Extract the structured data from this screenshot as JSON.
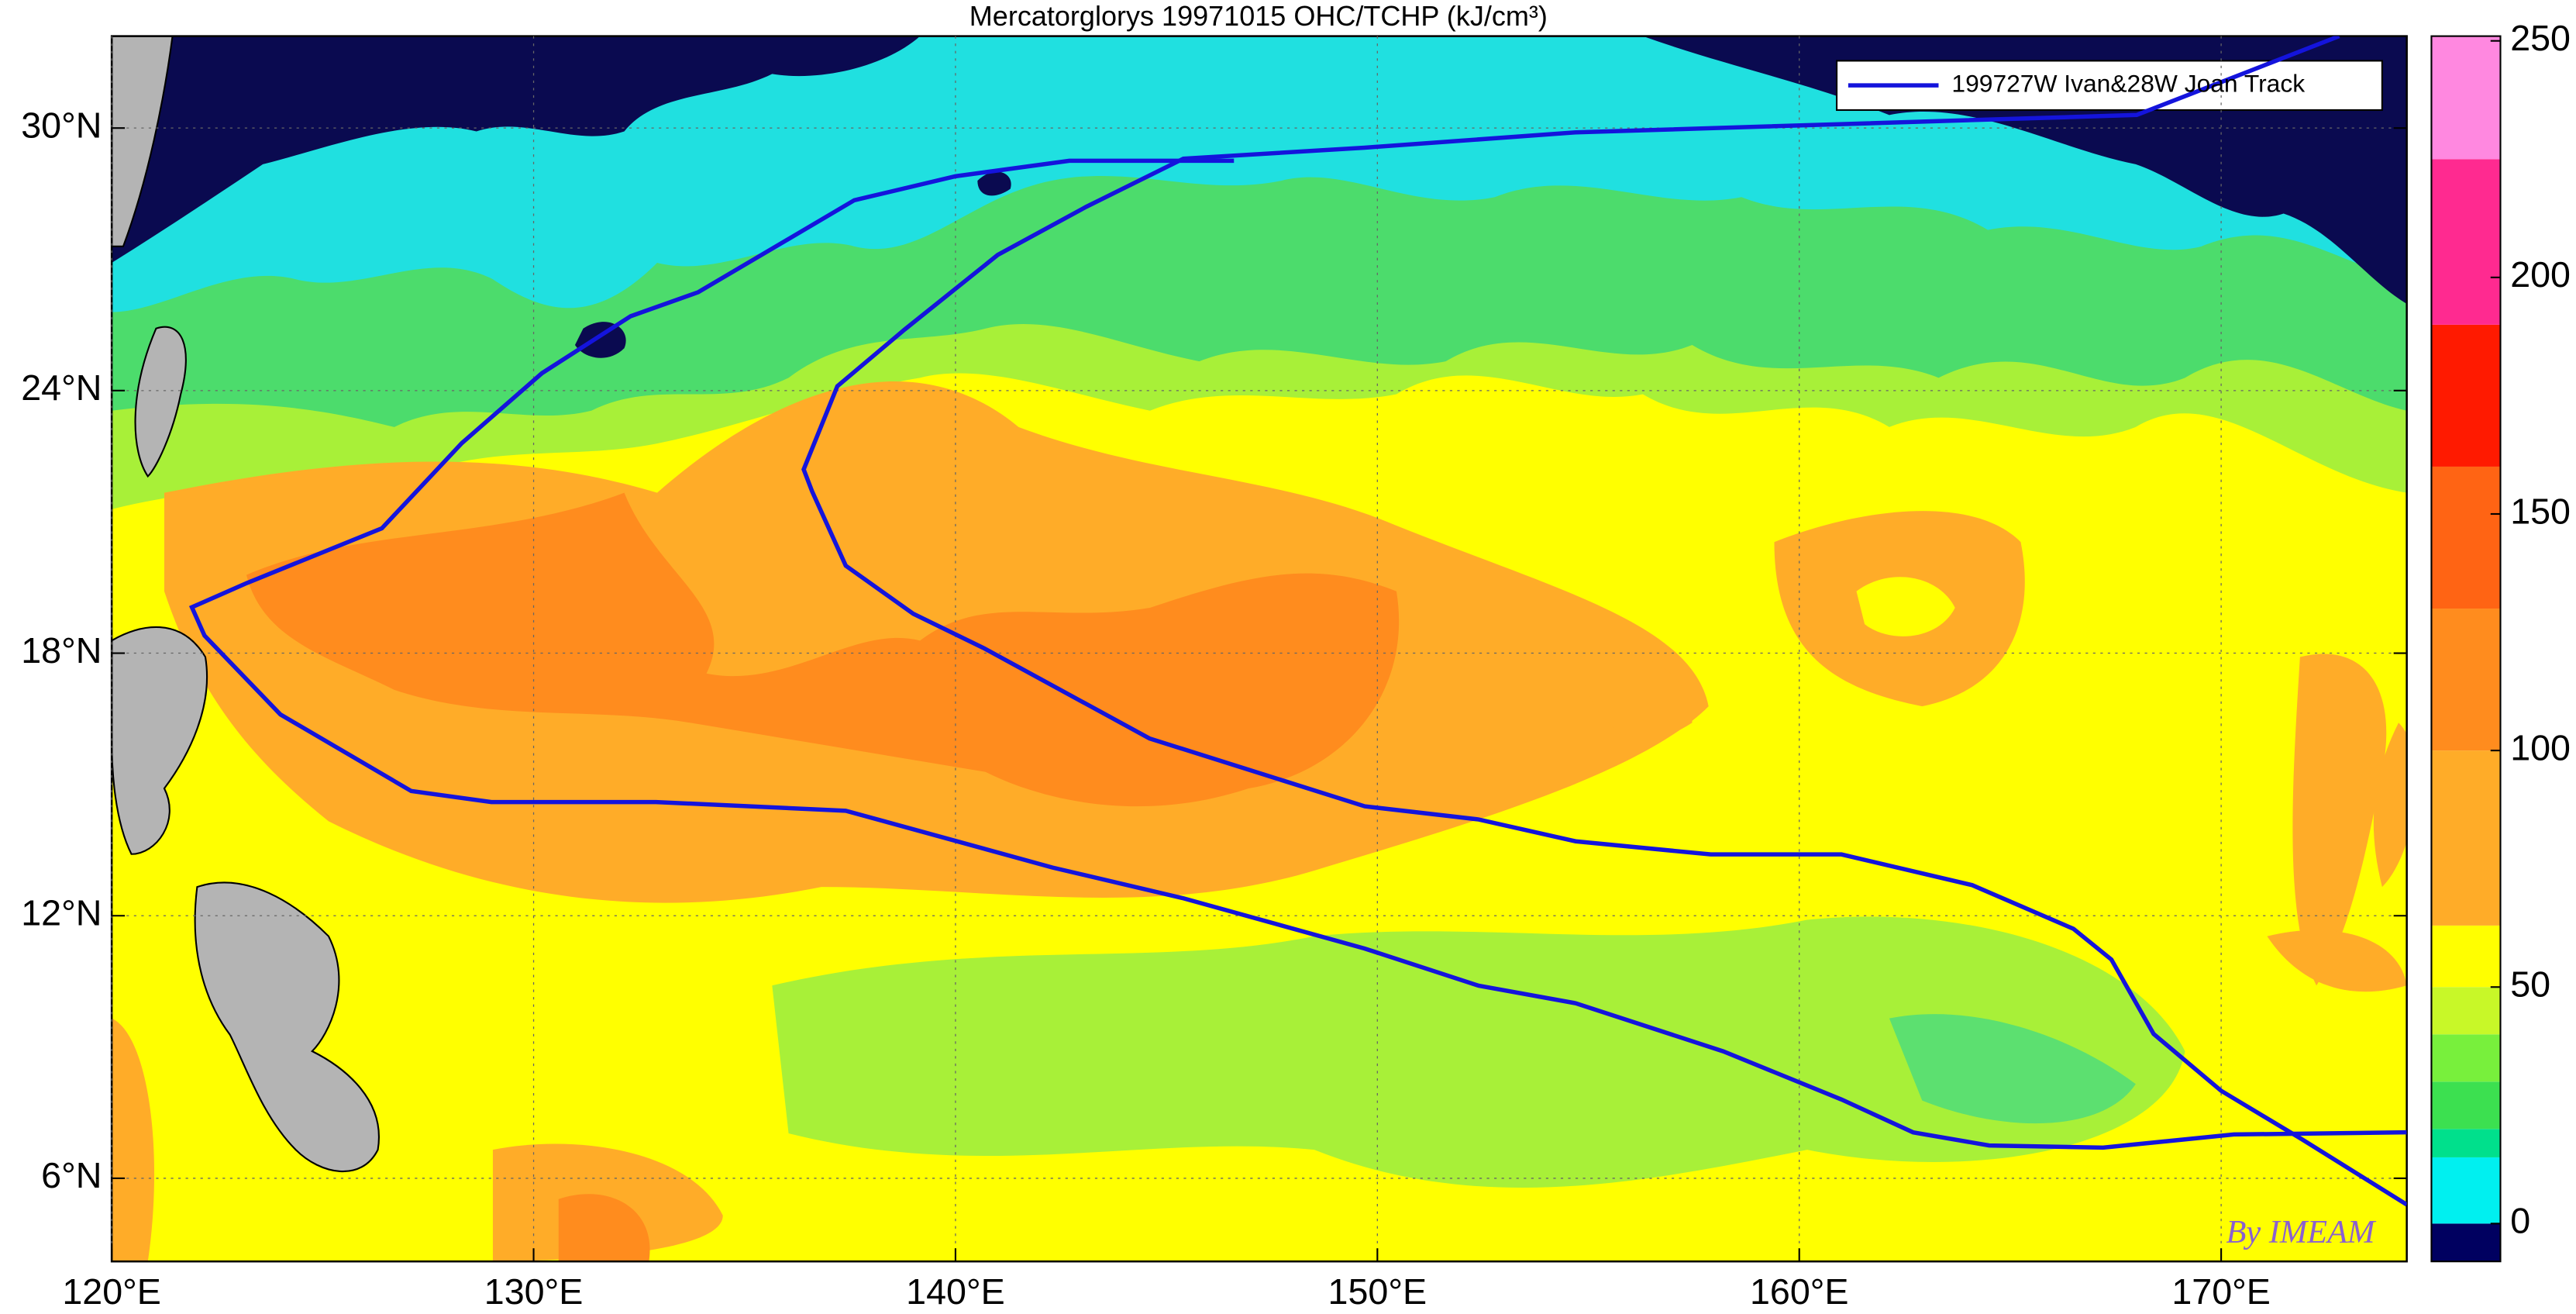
{
  "chart_data": {
    "type": "map",
    "title": "Mercatorglorys 19971015 OHC/TCHP (kJ/cm³)",
    "xlim": [
      120,
      174.4
    ],
    "ylim": [
      4.1,
      32.1
    ],
    "xticks": [
      {
        "value": 120,
        "label": "120°E"
      },
      {
        "value": 130,
        "label": "130°E"
      },
      {
        "value": 140,
        "label": "140°E"
      },
      {
        "value": 150,
        "label": "150°E"
      },
      {
        "value": 160,
        "label": "160°E"
      },
      {
        "value": 170,
        "label": "170°E"
      }
    ],
    "yticks": [
      {
        "value": 6,
        "label": "6°N"
      },
      {
        "value": 12,
        "label": "12°N"
      },
      {
        "value": 18,
        "label": "18°N"
      },
      {
        "value": 24,
        "label": "24°N"
      },
      {
        "value": 30,
        "label": "30°N"
      }
    ],
    "grid": true,
    "legend": "199727W Ivan&28W Joan Track",
    "legend_position": "upper right",
    "track_color": "#1414dc",
    "tracks": [
      {
        "lon": [
          172.8,
          168.0,
          154.7,
          149.7,
          145.4,
          143.1,
          141.0,
          138.8,
          137.2,
          136.4,
          136.6,
          137.4,
          139.0,
          140.7,
          144.6,
          149.7,
          152.4,
          154.7,
          157.9,
          161.0,
          164.1,
          166.5,
          167.4,
          168.4,
          170.0,
          171.9,
          174.4
        ],
        "lat": [
          32.1,
          30.3,
          29.9,
          29.55,
          29.3,
          28.2,
          27.1,
          25.4,
          24.1,
          22.2,
          21.7,
          20.0,
          18.9,
          18.1,
          16.05,
          14.5,
          14.2,
          13.7,
          13.4,
          13.4,
          12.7,
          11.7,
          11.0,
          9.3,
          8.0,
          6.9,
          5.4
        ]
      },
      {
        "lon": [
          146.6,
          142.7,
          140.0,
          137.6,
          133.9,
          132.3,
          130.2,
          128.3,
          126.4,
          123.2,
          121.9,
          122.2,
          124.0,
          127.1,
          129.0,
          131.8,
          132.9,
          137.4,
          142.3,
          145.4,
          149.7,
          152.4,
          154.7,
          158.2,
          161.0,
          162.7,
          164.5,
          167.2,
          170.3,
          174.4
        ],
        "lat": [
          29.25,
          29.25,
          28.9,
          28.35,
          26.25,
          25.7,
          24.4,
          22.8,
          20.85,
          19.6,
          19.05,
          18.4,
          16.6,
          14.85,
          14.6,
          14.6,
          14.6,
          14.4,
          13.1,
          12.4,
          11.25,
          10.4,
          10.0,
          8.9,
          7.8,
          7.05,
          6.75,
          6.7,
          7.0,
          7.05
        ]
      }
    ],
    "clim": [
      -8,
      251
    ],
    "cticks": [
      0,
      50,
      100,
      150,
      200,
      250
    ],
    "colorbar": [
      {
        "from": -8,
        "to": 0,
        "color": "#000060"
      },
      {
        "from": 0,
        "to": 14,
        "color": "#00f0f0"
      },
      {
        "from": 14,
        "to": 20,
        "color": "#00e08c"
      },
      {
        "from": 20,
        "to": 30,
        "color": "#3ce050"
      },
      {
        "from": 30,
        "to": 40,
        "color": "#78f03c"
      },
      {
        "from": 40,
        "to": 50,
        "color": "#c8f828"
      },
      {
        "from": 50,
        "to": 63,
        "color": "#ffff00"
      },
      {
        "from": 63,
        "to": 100,
        "color": "#ffac28"
      },
      {
        "from": 100,
        "to": 130,
        "color": "#ff8c1e"
      },
      {
        "from": 130,
        "to": 160,
        "color": "#ff6414"
      },
      {
        "from": 160,
        "to": 190,
        "color": "#ff1a00"
      },
      {
        "from": 190,
        "to": 225,
        "color": "#ff2a90"
      },
      {
        "from": 225,
        "to": 251,
        "color": "#ff88e0"
      }
    ],
    "watermark": "By IMEAM"
  }
}
